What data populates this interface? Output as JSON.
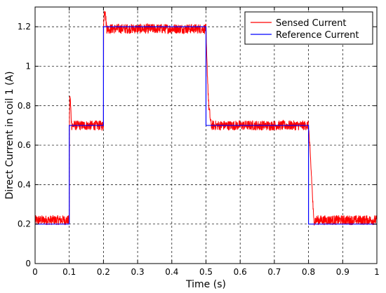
{
  "chart_data": {
    "type": "line",
    "title": "",
    "xlabel": "Time (s)",
    "ylabel": "Direct Current in coil 1 (A)",
    "xlim": [
      0,
      1
    ],
    "ylim": [
      0,
      1.3
    ],
    "xticks": [
      0,
      0.1,
      0.2,
      0.3,
      0.4,
      0.5,
      0.6,
      0.7,
      0.8,
      0.9,
      1
    ],
    "xtick_labels": [
      "0",
      "0.1",
      "0.2",
      "0.3",
      "0.4",
      "0.5",
      "0.6",
      "0.7",
      "0.8",
      "0.9",
      "1"
    ],
    "yticks": [
      0,
      0.2,
      0.4,
      0.6,
      0.8,
      1,
      1.2
    ],
    "ytick_labels": [
      "0",
      "0.2",
      "0.4",
      "0.6",
      "0.8",
      "1",
      "1.2"
    ],
    "grid": true,
    "legend_position": "top-right",
    "series": [
      {
        "name": "Sensed Current",
        "color": "#ff0000",
        "noise_amplitude": 0.025,
        "x": [
          0,
          0.1,
          0.1,
          0.102,
          0.107,
          0.2,
          0.2,
          0.203,
          0.21,
          0.5,
          0.502,
          0.508,
          0.515,
          0.8,
          0.81,
          0.815,
          1
        ],
        "y": [
          0.22,
          0.22,
          0.7,
          0.86,
          0.7,
          0.7,
          1.19,
          1.3,
          1.19,
          1.19,
          1.05,
          0.8,
          0.7,
          0.7,
          0.4,
          0.22,
          0.22
        ]
      },
      {
        "name": "Reference Current",
        "color": "#0000ff",
        "x": [
          0,
          0.1,
          0.1,
          0.2,
          0.2,
          0.5,
          0.5,
          0.8,
          0.8,
          1
        ],
        "y": [
          0.2,
          0.2,
          0.7,
          0.7,
          1.2,
          1.2,
          0.7,
          0.7,
          0.2,
          0.2
        ]
      }
    ]
  }
}
